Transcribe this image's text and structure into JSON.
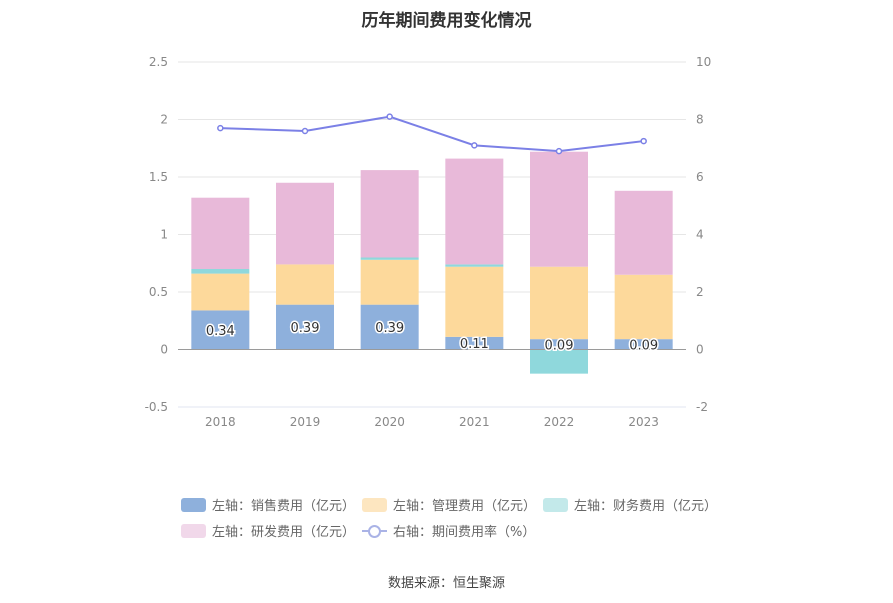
{
  "title": "历年期间费用变化情况",
  "source": "数据来源：恒生聚源",
  "colors": {
    "sales": "#8eb0dc",
    "admin": "#fdd99b",
    "finance": "#8fd8dc",
    "rnd": "#e8b9d9",
    "rate_line": "#7b80e6",
    "legend_sales": "#8eb0dc",
    "legend_admin": "#fde6c0",
    "legend_finance": "#c3e9ea",
    "legend_rnd": "#f1d8ea"
  },
  "legend": {
    "sales": "左轴：销售费用（亿元）",
    "admin": "左轴：管理费用（亿元）",
    "finance": "左轴：财务费用（亿元）",
    "rnd": "左轴：研发费用（亿元）",
    "rate": "右轴：期间费用率（%）"
  },
  "chart_data": {
    "type": "bar",
    "stacked": true,
    "categories": [
      "2018",
      "2019",
      "2020",
      "2021",
      "2022",
      "2023"
    ],
    "left_axis": {
      "ticks": [
        "-0.5",
        "0",
        "0.5",
        "1",
        "1.5",
        "2",
        "2.5"
      ],
      "ylim": [
        -0.5,
        2.5
      ]
    },
    "right_axis": {
      "ticks": [
        "-2",
        "0",
        "2",
        "4",
        "6",
        "8",
        "10"
      ],
      "ylim": [
        -2,
        10
      ]
    },
    "series": [
      {
        "name": "左轴：销售费用（亿元）",
        "key": "sales",
        "axis": "left",
        "values": [
          0.34,
          0.39,
          0.39,
          0.11,
          0.09,
          0.09
        ]
      },
      {
        "name": "左轴：管理费用（亿元）",
        "key": "admin",
        "axis": "left",
        "values": [
          0.32,
          0.35,
          0.39,
          0.61,
          0.63,
          0.56
        ]
      },
      {
        "name": "左轴：财务费用（亿元）",
        "key": "finance",
        "axis": "left",
        "values": [
          0.04,
          0.0,
          0.02,
          0.02,
          -0.21,
          0.0
        ]
      },
      {
        "name": "左轴：研发费用（亿元）",
        "key": "rnd",
        "axis": "left",
        "values": [
          0.62,
          0.71,
          0.76,
          0.92,
          1.0,
          0.73
        ]
      },
      {
        "name": "右轴：期间费用率（%）",
        "key": "rate",
        "axis": "right",
        "type": "line",
        "values": [
          7.7,
          7.6,
          8.1,
          7.1,
          6.9,
          7.25
        ]
      }
    ],
    "bar_labels": [
      "0.34",
      "0.39",
      "0.39",
      "0.11",
      "0.09",
      "0.09"
    ],
    "grid": true,
    "legend_position": "bottom"
  }
}
